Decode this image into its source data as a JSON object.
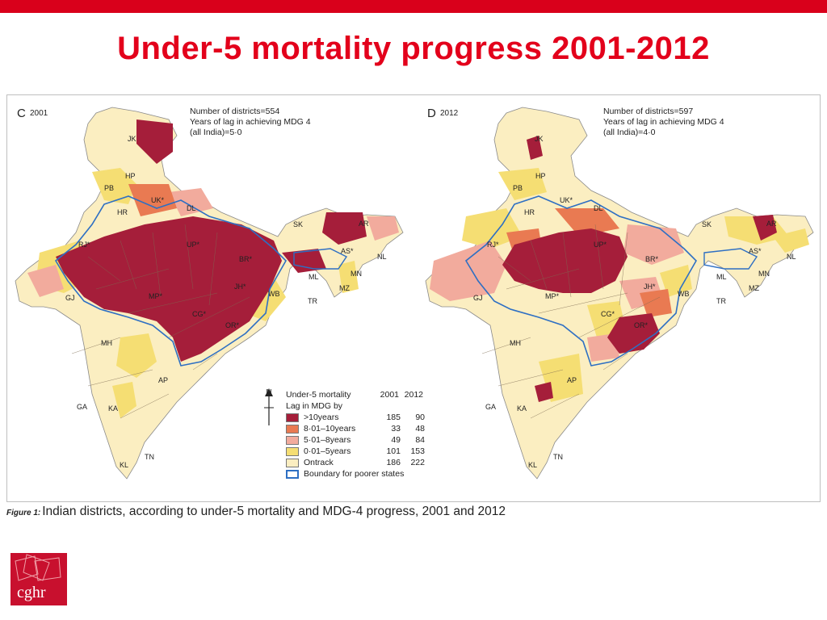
{
  "title": "Under-5 mortality progress 2001-2012",
  "colors": {
    "accent": "#d9001b",
    "lag_gt10": "#a51e3a",
    "lag_8_10": "#e97a52",
    "lag_5_8": "#f2ab9d",
    "lag_0_5": "#f5de73",
    "on_track": "#fbeec1",
    "boundary": "#2e6fc3"
  },
  "legend": {
    "header_label": "Under-5 mortality",
    "header_sub": "Lag in MDG by",
    "year_a": "2001",
    "year_b": "2012",
    "boundary_label": "Boundary for poorer states",
    "rows": [
      {
        "label": ">10years",
        "a": "185",
        "b": "90"
      },
      {
        "label": "8·01–10years",
        "a": "33",
        "b": "48"
      },
      {
        "label": "5·01–8years",
        "a": "49",
        "b": "84"
      },
      {
        "label": "0·01–5years",
        "a": "101",
        "b": "153"
      },
      {
        "label": "Ontrack",
        "a": "186",
        "b": "222"
      }
    ]
  },
  "north_label": "N",
  "maps": [
    {
      "letter": "C",
      "year": "2001",
      "note_1": "Number of districts=554",
      "note_2": "Years of lag in achieving MDG 4",
      "note_3": "(all India)=5·0"
    },
    {
      "letter": "D",
      "year": "2012",
      "note_1": "Number of districts=597",
      "note_2": "Years of lag in achieving MDG 4",
      "note_3": "(all India)=4·0"
    }
  ],
  "state_codes": {
    "jk": "JK",
    "hp": "HP",
    "pb": "PB",
    "uk": "UK*",
    "hr": "HR",
    "dl": "DL",
    "rj": "RJ*",
    "up": "UP*",
    "br": "BR*",
    "jh": "JH*",
    "wb": "WB",
    "mp": "MP*",
    "cg": "CG*",
    "or": "OR*",
    "gj": "GJ",
    "mh": "MH",
    "ap": "AP",
    "ga": "GA",
    "ka": "KA",
    "kl": "KL",
    "tn": "TN",
    "sk": "SK",
    "ar": "AR",
    "as": "AS*",
    "nl": "NL",
    "ml": "ML",
    "mn": "MN",
    "mz": "MZ",
    "tr": "TR"
  },
  "caption_label": "Figure 1:",
  "caption": "Indian districts, according to under-5 mortality and MDG-4 progress, 2001 and 2012",
  "logo_text": "cghr"
}
